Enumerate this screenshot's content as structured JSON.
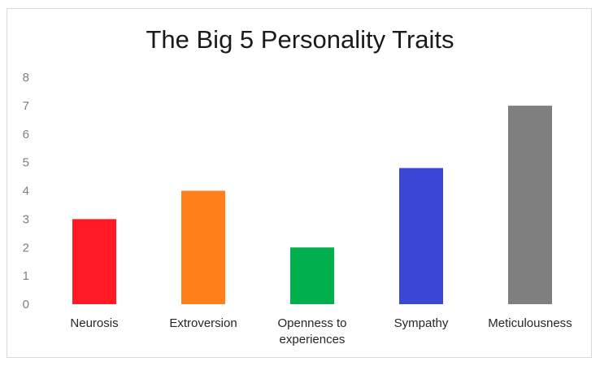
{
  "chart_data": {
    "type": "bar",
    "title": "The Big 5 Personality Traits",
    "xlabel": "",
    "ylabel": "",
    "categories": [
      "Neurosis",
      "Extroversion",
      "Openness to experiences",
      "Sympathy",
      "Meticulousness"
    ],
    "category_lines": [
      [
        "Neurosis"
      ],
      [
        "Extroversion"
      ],
      [
        "Openness to",
        "experiences"
      ],
      [
        "Sympathy"
      ],
      [
        "Meticulousness"
      ]
    ],
    "values": [
      3,
      4,
      2,
      4.8,
      7
    ],
    "colors": [
      "#ff1a26",
      "#ff7f1a",
      "#00b04f",
      "#3a46d4",
      "#7f7f7f"
    ],
    "ylim": [
      0,
      8
    ],
    "yticks": [
      "0",
      "1",
      "2",
      "3",
      "4",
      "5",
      "6",
      "7",
      "8"
    ],
    "grid": false,
    "legend": "none"
  }
}
